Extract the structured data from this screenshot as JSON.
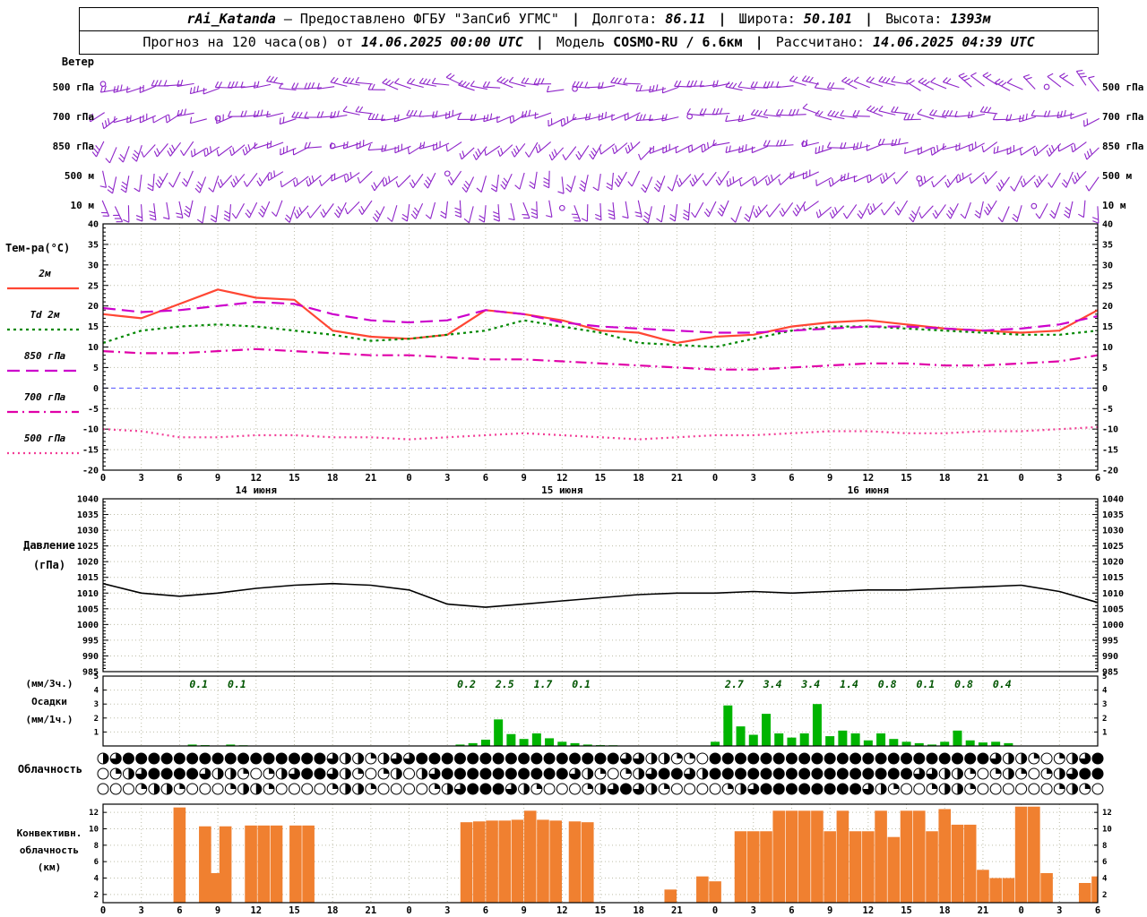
{
  "header": {
    "line1": {
      "station": "rAi_Katanda",
      "provided": "— Предоставлено ФГБУ \"ЗапСиб УГМС\"",
      "sep": "|",
      "lon_label": "Долгота:",
      "lon": "86.11",
      "lat_label": "Широта:",
      "lat": "50.101",
      "alt_label": "Высота:",
      "alt": "1393м"
    },
    "line2": {
      "prefix": "Прогноз на 120 часа(ов) от",
      "run_time": "14.06.2025 00:00 UTC",
      "sep": "|",
      "model_label": "Модель",
      "model": "COSMO-RU / 6.6км",
      "calc_label": "Рассчитано:",
      "calc_time": "14.06.2025 04:39 UTC"
    }
  },
  "labels": {
    "wind": "Ветер",
    "temp_title": "Тем-ра(°C)",
    "pressure1": "Давление",
    "pressure2": "(гПа)",
    "precip1": "(мм/3ч.)",
    "precip2": "Осадки",
    "precip3": "(мм/1ч.)",
    "cloud": "Облачность",
    "conv1": "Конвективн.",
    "conv2": "облачность",
    "conv3": "(км)"
  },
  "colors": {
    "frame": "#000000",
    "grid": "#bdbda8",
    "zero_line": "#5050ff",
    "wind": "#8e24c9",
    "pressure_line": "#000000",
    "precip_bar": "#00b400",
    "precip_label": "#005500",
    "conv_bar": "#f08030"
  },
  "chart_data": {
    "type": "meteogram",
    "x_hours": {
      "start": 0,
      "end": 78,
      "step": 3
    },
    "dates": [
      {
        "h": 12,
        "label": "14 июня"
      },
      {
        "h": 36,
        "label": "15 июня"
      },
      {
        "h": 60,
        "label": "16 июня"
      }
    ],
    "wind": {
      "levels": [
        {
          "label": "500 гПа",
          "dirs": [
            250,
            255,
            260,
            262,
            266,
            270,
            274,
            278,
            283,
            288,
            284,
            279,
            274,
            270,
            266,
            262,
            266,
            271,
            276,
            281,
            286,
            291,
            296,
            301,
            306,
            311,
            316
          ]
        },
        {
          "label": "700 гПа",
          "dirs": [
            240,
            244,
            249,
            254,
            259,
            264,
            269,
            271,
            266,
            261,
            256,
            251,
            246,
            250,
            255,
            260,
            265,
            270,
            275,
            280,
            284,
            279,
            274,
            269,
            264,
            259,
            254
          ]
        },
        {
          "label": "850 гПа",
          "dirs": [
            200,
            210,
            220,
            230,
            240,
            250,
            255,
            260,
            250,
            240,
            230,
            221,
            216,
            221,
            230,
            240,
            249,
            255,
            260,
            264,
            259,
            254,
            249,
            244,
            239,
            234,
            229
          ]
        },
        {
          "label": "500 м",
          "dirs": [
            180,
            190,
            200,
            210,
            220,
            230,
            239,
            229,
            219,
            209,
            199,
            190,
            186,
            191,
            200,
            210,
            220,
            229,
            239,
            244,
            239,
            234,
            229,
            224,
            219,
            214,
            209
          ]
        },
        {
          "label": "10 м",
          "dirs": [
            160,
            170,
            180,
            190,
            200,
            210,
            219,
            209,
            199,
            189,
            179,
            170,
            166,
            171,
            180,
            190,
            200,
            209,
            219,
            224,
            219,
            214,
            209,
            204,
            199,
            194,
            189
          ]
        }
      ]
    },
    "temperature": {
      "ymin": -20,
      "ymax": 40,
      "ystep": 5,
      "series": [
        {
          "name": "2м",
          "color": "#ff4633",
          "dash": "",
          "values": [
            18,
            17,
            20.5,
            24,
            22,
            21.5,
            14,
            12.5,
            12,
            13,
            19,
            18,
            16.5,
            14,
            13.5,
            11,
            12.5,
            13,
            15,
            16,
            16.5,
            15.5,
            14.5,
            14,
            13.5,
            14,
            19
          ]
        },
        {
          "name": "Td 2м",
          "color": "#008800",
          "dash": "3 4",
          "values": [
            11,
            14,
            15,
            15.5,
            15,
            14,
            13,
            11.5,
            12,
            13,
            14,
            16.5,
            15,
            13.5,
            11,
            10.5,
            10,
            12,
            14,
            15,
            15,
            14.5,
            14,
            13.5,
            13,
            13,
            14
          ]
        },
        {
          "name": "850 гПа",
          "color": "#cc00cc",
          "dash": "14 7",
          "values": [
            19.5,
            18.5,
            19,
            20,
            21,
            20.5,
            18,
            16.5,
            16,
            16.5,
            19,
            18,
            16,
            15,
            14.5,
            14,
            13.5,
            13.5,
            14,
            14.5,
            15,
            15,
            14.5,
            14,
            14.5,
            15.5,
            17.5
          ]
        },
        {
          "name": "700 гПа",
          "color": "#e000a8",
          "dash": "12 5 2 5",
          "values": [
            9,
            8.5,
            8.5,
            9,
            9.5,
            9,
            8.5,
            8,
            8,
            7.5,
            7,
            7,
            6.5,
            6,
            5.5,
            5,
            4.5,
            4.5,
            5,
            5.5,
            6,
            6,
            5.5,
            5.5,
            6,
            6.5,
            8
          ]
        },
        {
          "name": "500 гПа",
          "color": "#f23d96",
          "dash": "2 4",
          "values": [
            -10,
            -10.5,
            -12,
            -12,
            -11.5,
            -11.5,
            -12,
            -12,
            -12.5,
            -12,
            -11.5,
            -11,
            -11.5,
            -12,
            -12.5,
            -12,
            -11.5,
            -11.5,
            -11,
            -10.5,
            -10.5,
            -11,
            -11,
            -10.5,
            -10.5,
            -10,
            -9.5
          ]
        }
      ]
    },
    "pressure": {
      "ymin": 985,
      "ymax": 1040,
      "ystep": 5,
      "values": [
        1013,
        1010,
        1009,
        1010,
        1011.5,
        1012.5,
        1013,
        1012.5,
        1011,
        1006.5,
        1005.5,
        1006.5,
        1007.5,
        1008.5,
        1009.5,
        1010,
        1010,
        1010.5,
        1010,
        1010.5,
        1011,
        1011,
        1011.5,
        1012,
        1012.5,
        1010.5,
        1007
      ]
    },
    "precip": {
      "ymax": 5,
      "labels_3h": [
        {
          "h": 7.5,
          "t": "0.1"
        },
        {
          "h": 10.5,
          "t": "0.1"
        },
        {
          "h": 28.5,
          "t": "0.2"
        },
        {
          "h": 31.5,
          "t": "2.5"
        },
        {
          "h": 34.5,
          "t": "1.7"
        },
        {
          "h": 37.5,
          "t": "0.1"
        },
        {
          "h": 49.5,
          "t": "2.7"
        },
        {
          "h": 52.5,
          "t": "3.4"
        },
        {
          "h": 55.5,
          "t": "3.4"
        },
        {
          "h": 58.5,
          "t": "1.4"
        },
        {
          "h": 61.5,
          "t": "0.8"
        },
        {
          "h": 64.5,
          "t": "0.1"
        },
        {
          "h": 67.5,
          "t": "0.8"
        },
        {
          "h": 70.5,
          "t": "0.4"
        }
      ],
      "bars_1h": [
        [
          7,
          0.1
        ],
        [
          8,
          0.06
        ],
        [
          10,
          0.1
        ],
        [
          11,
          0.05
        ],
        [
          28,
          0.1
        ],
        [
          29,
          0.2
        ],
        [
          30,
          0.45
        ],
        [
          31,
          1.9
        ],
        [
          32,
          0.85
        ],
        [
          33,
          0.5
        ],
        [
          34,
          0.9
        ],
        [
          35,
          0.55
        ],
        [
          36,
          0.3
        ],
        [
          37,
          0.2
        ],
        [
          38,
          0.1
        ],
        [
          39,
          0.06
        ],
        [
          40,
          0.05
        ],
        [
          48,
          0.3
        ],
        [
          49,
          2.9
        ],
        [
          50,
          1.4
        ],
        [
          51,
          0.8
        ],
        [
          52,
          2.3
        ],
        [
          53,
          0.9
        ],
        [
          54,
          0.6
        ],
        [
          55,
          0.9
        ],
        [
          56,
          3.0
        ],
        [
          57,
          0.7
        ],
        [
          58,
          1.1
        ],
        [
          59,
          0.9
        ],
        [
          60,
          0.4
        ],
        [
          61,
          0.9
        ],
        [
          62,
          0.5
        ],
        [
          63,
          0.3
        ],
        [
          64,
          0.2
        ],
        [
          65,
          0.1
        ],
        [
          66,
          0.3
        ],
        [
          67,
          1.1
        ],
        [
          68,
          0.4
        ],
        [
          69,
          0.25
        ],
        [
          70,
          0.3
        ],
        [
          71,
          0.2
        ]
      ]
    },
    "cloud": {
      "rows": [
        "4688888888888888886442466888888888888888866442208888888888888888888888644202468",
        "0246888864420246886420240468888888888642024688648888888888888888664420242024688",
        "0002442000244200002442000024688864200024686420000246888888886420024420000002420"
      ]
    },
    "convective": {
      "ymin": 2,
      "ymax": 12,
      "ystep": 2,
      "bars": [
        [
          6,
          12.6
        ],
        [
          8,
          10.3
        ],
        [
          8.9,
          4.6
        ],
        [
          9.6,
          10.3
        ],
        [
          11.6,
          10.4
        ],
        [
          12.6,
          10.4
        ],
        [
          13.6,
          10.4
        ],
        [
          15.1,
          10.4
        ],
        [
          16.1,
          10.4
        ],
        [
          28.5,
          10.8
        ],
        [
          29.5,
          10.9
        ],
        [
          30.5,
          11
        ],
        [
          31.5,
          11
        ],
        [
          32.5,
          11.1
        ],
        [
          33.5,
          12.2
        ],
        [
          34.5,
          11.1
        ],
        [
          35.5,
          11
        ],
        [
          37,
          10.9
        ],
        [
          38,
          10.8
        ],
        [
          44.5,
          2.6
        ],
        [
          47,
          4.2
        ],
        [
          48,
          3.6
        ],
        [
          50,
          9.7
        ],
        [
          51,
          9.7
        ],
        [
          52,
          9.7
        ],
        [
          53,
          12.2
        ],
        [
          54,
          12.2
        ],
        [
          55,
          12.2
        ],
        [
          56,
          12.2
        ],
        [
          57,
          9.7
        ],
        [
          58,
          12.2
        ],
        [
          59,
          9.7
        ],
        [
          60,
          9.7
        ],
        [
          61,
          12.2
        ],
        [
          62,
          9
        ],
        [
          63,
          12.2
        ],
        [
          64,
          12.2
        ],
        [
          65,
          9.7
        ],
        [
          66,
          12.4
        ],
        [
          67,
          10.5
        ],
        [
          68,
          10.5
        ],
        [
          69,
          5
        ],
        [
          70,
          4
        ],
        [
          71,
          4
        ],
        [
          72,
          12.7
        ],
        [
          73,
          12.7
        ],
        [
          74,
          4.6
        ],
        [
          77,
          3.4
        ],
        [
          78,
          4.2
        ]
      ]
    }
  }
}
